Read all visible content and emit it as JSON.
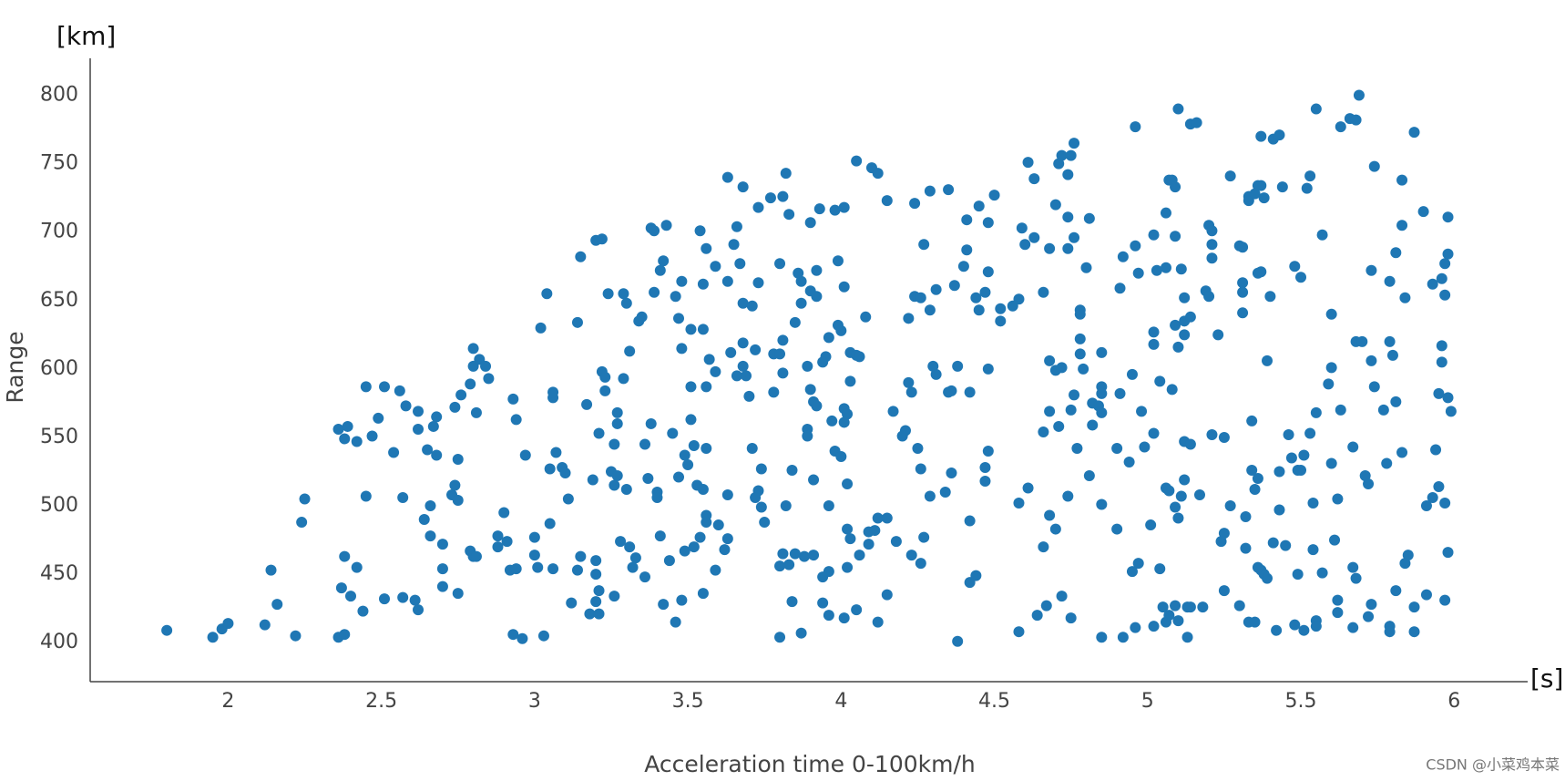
{
  "chart_data": {
    "type": "scatter",
    "y_unit": "[km]",
    "x_unit": "[s]",
    "y_label": "Range",
    "x_label": "Acceleration time 0-100km/h",
    "watermark": "CSDN @小菜鸡本菜",
    "color": "#1f77b4",
    "xlim": [
      1.55,
      6.24
    ],
    "ylim": [
      371.5,
      827
    ],
    "xticks": [
      2,
      2.5,
      3,
      3.5,
      4,
      4.5,
      5,
      5.5,
      6
    ],
    "yticks": [
      400,
      450,
      500,
      550,
      600,
      650,
      700,
      750,
      800
    ],
    "x": [
      1.8,
      1.95,
      1.98,
      2.0,
      2.12,
      2.14,
      2.16,
      2.22,
      2.24,
      2.25,
      2.36,
      2.36,
      2.37,
      2.38,
      2.38,
      2.38,
      2.39,
      2.4,
      2.42,
      2.42,
      2.44,
      2.45,
      2.45,
      2.47,
      2.49,
      2.51,
      2.51,
      2.54,
      2.56,
      2.57,
      2.57,
      2.58,
      2.61,
      2.62,
      2.62,
      2.62,
      2.64,
      2.65,
      2.66,
      2.66,
      2.67,
      2.68,
      2.68,
      2.7,
      2.7,
      2.7,
      2.73,
      2.74,
      2.74,
      2.75,
      2.75,
      2.75,
      2.76,
      2.79,
      2.79,
      2.8,
      2.8,
      2.8,
      2.81,
      2.81,
      2.82,
      2.84,
      2.85,
      2.88,
      2.88,
      2.9,
      2.91,
      2.92,
      2.93,
      2.93,
      2.94,
      2.94,
      2.96,
      2.97,
      3.0,
      3.0,
      3.01,
      3.02,
      3.03,
      3.04,
      3.05,
      3.05,
      3.06,
      3.06,
      3.06,
      3.07,
      3.09,
      3.1,
      3.11,
      3.12,
      3.14,
      3.14,
      3.15,
      3.15,
      3.17,
      3.18,
      3.19,
      3.2,
      3.2,
      3.2,
      3.2,
      3.21,
      3.21,
      3.21,
      3.22,
      3.22,
      3.23,
      3.23,
      3.24,
      3.25,
      3.26,
      3.26,
      3.26,
      3.27,
      3.27,
      3.27,
      3.28,
      3.29,
      3.29,
      3.3,
      3.3,
      3.31,
      3.31,
      3.32,
      3.33,
      3.34,
      3.35,
      3.36,
      3.36,
      3.37,
      3.38,
      3.38,
      3.39,
      3.39,
      3.4,
      3.4,
      3.41,
      3.41,
      3.42,
      3.42,
      3.43,
      3.44,
      3.45,
      3.46,
      3.46,
      3.47,
      3.47,
      3.48,
      3.48,
      3.48,
      3.49,
      3.49,
      3.5,
      3.51,
      3.51,
      3.51,
      3.52,
      3.53,
      3.54,
      3.55,
      3.55,
      3.56,
      3.56,
      3.56,
      3.57,
      3.63,
      3.68,
      3.54,
      3.56,
      3.55,
      3.59,
      3.63,
      3.65,
      3.66,
      3.67,
      3.68,
      3.71,
      3.73,
      3.73,
      3.77,
      3.81,
      3.82,
      3.83,
      3.8,
      3.85,
      3.87,
      3.87,
      3.86,
      3.9,
      3.92,
      3.92,
      3.9,
      3.93,
      3.98,
      4.01,
      3.99,
      4.01,
      4.0,
      3.99,
      3.96,
      3.95,
      4.03,
      4.05,
      4.06,
      4.03,
      4.08,
      4.05,
      4.1,
      4.12,
      4.15,
      3.59,
      3.64,
      3.68,
      3.68,
      3.66,
      3.69,
      3.7,
      3.72,
      3.78,
      3.8,
      3.81,
      3.81,
      3.78,
      3.89,
      3.9,
      3.94,
      3.91,
      3.92,
      4.01,
      4.02,
      4.01,
      3.97,
      3.89,
      3.89,
      3.71,
      3.74,
      3.73,
      3.72,
      3.74,
      3.75,
      3.63,
      3.55,
      3.56,
      3.52,
      3.6,
      3.62,
      3.63,
      3.59,
      3.84,
      3.82,
      3.91,
      3.98,
      4.0,
      4.02,
      3.96,
      4.02,
      4.03,
      4.09,
      4.06,
      4.09,
      3.91,
      3.88,
      3.85,
      3.83,
      3.81,
      3.8,
      3.96,
      3.94,
      4.02,
      3.94,
      3.96,
      4.01,
      4.05,
      3.8,
      3.87,
      3.84,
      4.12,
      4.15,
      4.12,
      4.15,
      4.11,
      4.18,
      4.23,
      4.21,
      4.17,
      4.2,
      4.22,
      4.23,
      4.25,
      4.26,
      4.27,
      4.26,
      4.29,
      4.34,
      4.3,
      4.31,
      4.22,
      4.24,
      4.26,
      4.27,
      4.29,
      4.31,
      4.24,
      4.29,
      4.35,
      4.37,
      4.41,
      4.41,
      4.4,
      4.44,
      4.45,
      4.45,
      4.47,
      4.48,
      4.48,
      4.5,
      4.52,
      4.52,
      4.56,
      4.58,
      4.59,
      4.6,
      4.61,
      4.63,
      4.63,
      4.66,
      4.68,
      4.7,
      4.72,
      4.71,
      4.74,
      4.75,
      4.76,
      4.74,
      4.76,
      4.74,
      4.81,
      4.78,
      4.78,
      4.8,
      4.35,
      4.36,
      4.42,
      4.38,
      4.48,
      4.47,
      4.47,
      4.48,
      4.42,
      4.36,
      4.42,
      4.44,
      4.38,
      4.58,
      4.61,
      4.58,
      4.64,
      4.67,
      4.72,
      4.66,
      4.68,
      4.7,
      4.74,
      4.66,
      4.68,
      4.71,
      4.68,
      4.7,
      4.72,
      4.75,
      4.76,
      4.77,
      4.78,
      4.78,
      4.79,
      4.75,
      4.82,
      4.84,
      4.85,
      4.85,
      4.82,
      4.85,
      4.81,
      4.85,
      4.85,
      4.85,
      4.9,
      4.9,
      4.91,
      4.92,
      4.91,
      4.92,
      4.96,
      4.96,
      4.97,
      4.95,
      4.94,
      4.95,
      4.97,
      4.96,
      4.99,
      4.98,
      5.02,
      5.02,
      5.02,
      5.01,
      5.02,
      5.02,
      5.03,
      5.06,
      5.04,
      5.04,
      5.05,
      5.06,
      5.07,
      5.08,
      5.06,
      5.07,
      5.08,
      5.06,
      5.07,
      5.09,
      5.1,
      5.09,
      5.09,
      5.09,
      5.1,
      5.09,
      5.1,
      5.1,
      5.11,
      5.12,
      5.12,
      5.12,
      5.12,
      5.14,
      5.12,
      5.11,
      5.13,
      5.14,
      5.13,
      5.14,
      5.14,
      5.16,
      5.17,
      5.18,
      5.2,
      5.21,
      5.21,
      5.21,
      5.19,
      5.2,
      5.23,
      5.21,
      5.25,
      5.27,
      5.3,
      5.31,
      5.24,
      5.25,
      5.27,
      5.25,
      5.3,
      5.33,
      5.35,
      5.32,
      5.32,
      5.69,
      5.66,
      5.68,
      5.63,
      5.55,
      5.87,
      5.74,
      5.83,
      5.9,
      5.98,
      5.83,
      5.98,
      5.97,
      5.93,
      5.96,
      5.97,
      5.84,
      5.81,
      5.79,
      5.73,
      5.57,
      5.6,
      5.5,
      5.48,
      5.6,
      5.68,
      5.7,
      5.73,
      5.79,
      5.8,
      5.74,
      5.77,
      5.81,
      5.96,
      5.96,
      5.95,
      5.98,
      5.99,
      5.94,
      5.83,
      5.78,
      5.71,
      5.72,
      5.67,
      5.63,
      5.59,
      5.55,
      5.53,
      5.51,
      5.6,
      5.62,
      5.54,
      5.49,
      5.46,
      5.47,
      5.43,
      5.5,
      5.95,
      5.93,
      5.91,
      5.97,
      5.98,
      5.85,
      5.84,
      5.97,
      5.91,
      5.87,
      5.87,
      5.79,
      5.79,
      5.81,
      5.73,
      5.72,
      5.67,
      5.68,
      5.67,
      5.62,
      5.62,
      5.55,
      5.55,
      5.51,
      5.48,
      5.42,
      5.54,
      5.49,
      5.57,
      5.61,
      5.45,
      5.41,
      5.37,
      5.38,
      5.39,
      5.36,
      5.43,
      5.36,
      5.35,
      5.34,
      5.34,
      5.39,
      5.4,
      5.36,
      5.37,
      5.31,
      5.31,
      5.31,
      5.37,
      5.36,
      5.33,
      5.33,
      5.35,
      5.38,
      5.37,
      5.41,
      5.43,
      5.44,
      5.53,
      5.52
    ],
    "values": [
      409,
      404,
      410,
      414,
      413,
      453,
      428,
      405,
      488,
      505,
      404,
      556,
      440,
      463,
      406,
      549,
      558,
      434,
      455,
      547,
      423,
      507,
      587,
      551,
      564,
      432,
      587,
      539,
      584,
      433,
      506,
      573,
      431,
      424,
      556,
      569,
      490,
      541,
      478,
      500,
      558,
      537,
      565,
      441,
      454,
      472,
      508,
      572,
      515,
      436,
      534,
      504,
      581,
      467,
      589,
      463,
      602,
      615,
      568,
      463,
      607,
      602,
      593,
      470,
      478,
      495,
      474,
      453,
      578,
      406,
      454,
      563,
      403,
      537,
      477,
      464,
      455,
      630,
      405,
      655,
      487,
      527,
      454,
      579,
      583,
      539,
      528,
      524,
      505,
      429,
      634,
      453,
      463,
      682,
      574,
      421,
      519,
      694,
      460,
      450,
      430,
      421,
      438,
      553,
      695,
      598,
      584,
      594,
      655,
      525,
      434,
      515,
      545,
      522,
      560,
      568,
      474,
      655,
      593,
      512,
      648,
      613,
      470,
      455,
      462,
      635,
      638,
      448,
      545,
      520,
      560,
      703,
      656,
      701,
      510,
      506,
      672,
      478,
      428,
      679,
      705,
      460,
      553,
      653,
      415,
      521,
      637,
      664,
      615,
      431,
      467,
      537,
      530,
      587,
      629,
      563,
      470,
      515,
      477,
      436,
      629,
      542,
      587,
      488,
      607,
      740,
      733,
      701,
      688,
      662,
      675,
      664,
      691,
      704,
      677,
      648,
      646,
      663,
      718,
      725,
      726,
      743,
      713,
      677,
      634,
      648,
      664,
      670,
      657,
      672,
      653,
      707,
      717,
      716,
      718,
      679,
      660,
      628,
      632,
      623,
      609,
      612,
      610,
      609,
      591,
      638,
      752,
      747,
      743,
      723,
      598,
      612,
      619,
      602,
      595,
      595,
      580,
      614,
      611,
      611,
      621,
      597,
      583,
      602,
      585,
      605,
      576,
      573,
      571,
      567,
      561,
      562,
      556,
      551,
      542,
      527,
      511,
      506,
      499,
      488,
      508,
      512,
      493,
      544,
      486,
      468,
      476,
      453,
      526,
      500,
      519,
      540,
      536,
      516,
      500,
      483,
      476,
      481,
      464,
      472,
      464,
      463,
      465,
      457,
      465,
      456,
      452,
      448,
      455,
      429,
      420,
      418,
      424,
      404,
      407,
      430,
      415,
      435,
      491,
      491,
      482,
      474,
      464,
      555,
      569,
      551,
      590,
      583,
      542,
      527,
      477,
      458,
      507,
      510,
      602,
      596,
      637,
      653,
      652,
      691,
      643,
      658,
      721,
      730,
      731,
      661,
      709,
      687,
      675,
      652,
      719,
      643,
      656,
      707,
      671,
      727,
      644,
      635,
      646,
      651,
      703,
      691,
      751,
      739,
      696,
      656,
      688,
      720,
      756,
      750,
      742,
      756,
      765,
      711,
      696,
      688,
      710,
      643,
      640,
      674,
      583,
      584,
      583,
      602,
      600,
      528,
      518,
      540,
      489,
      524,
      444,
      449,
      401,
      502,
      513,
      408,
      420,
      427,
      434,
      470,
      493,
      483,
      507,
      554,
      569,
      558,
      606,
      599,
      601,
      570,
      581,
      542,
      611,
      622,
      600,
      418,
      575,
      573,
      587,
      582,
      559,
      568,
      522,
      501,
      612,
      404,
      483,
      542,
      582,
      404,
      659,
      682,
      777,
      690,
      670,
      596,
      532,
      452,
      458,
      411,
      543,
      569,
      627,
      618,
      553,
      486,
      412,
      698,
      672,
      674,
      591,
      454,
      426,
      714,
      738,
      738,
      513,
      511,
      585,
      415,
      420,
      427,
      790,
      733,
      697,
      632,
      616,
      499,
      491,
      416,
      673,
      652,
      625,
      635,
      547,
      545,
      519,
      507,
      426,
      426,
      404,
      638,
      779,
      780,
      508,
      426,
      705,
      701,
      691,
      681,
      657,
      653,
      625,
      552,
      550,
      741,
      690,
      663,
      474,
      480,
      500,
      438,
      427,
      415,
      415,
      492,
      469,
      800,
      783,
      782,
      777,
      790,
      773,
      748,
      738,
      715,
      711,
      705,
      684,
      677,
      662,
      666,
      654,
      652,
      685,
      664,
      672,
      698,
      640,
      667,
      675,
      601,
      620,
      620,
      606,
      620,
      610,
      587,
      570,
      576,
      617,
      605,
      582,
      579,
      569,
      541,
      539,
      531,
      522,
      516,
      543,
      570,
      589,
      568,
      553,
      537,
      531,
      505,
      502,
      526,
      552,
      535,
      525,
      526,
      514,
      506,
      500,
      502,
      466,
      464,
      458,
      431,
      435,
      426,
      408,
      412,
      408,
      438,
      428,
      419,
      411,
      447,
      455,
      431,
      422,
      416,
      412,
      409,
      413,
      409,
      468,
      450,
      451,
      475,
      471,
      473,
      453,
      450,
      447,
      455,
      497,
      520,
      512,
      526,
      562,
      606,
      653,
      670,
      671,
      656,
      641,
      689,
      734,
      734,
      723,
      726,
      728,
      725,
      770,
      768,
      771,
      733,
      741,
      732
    ]
  }
}
